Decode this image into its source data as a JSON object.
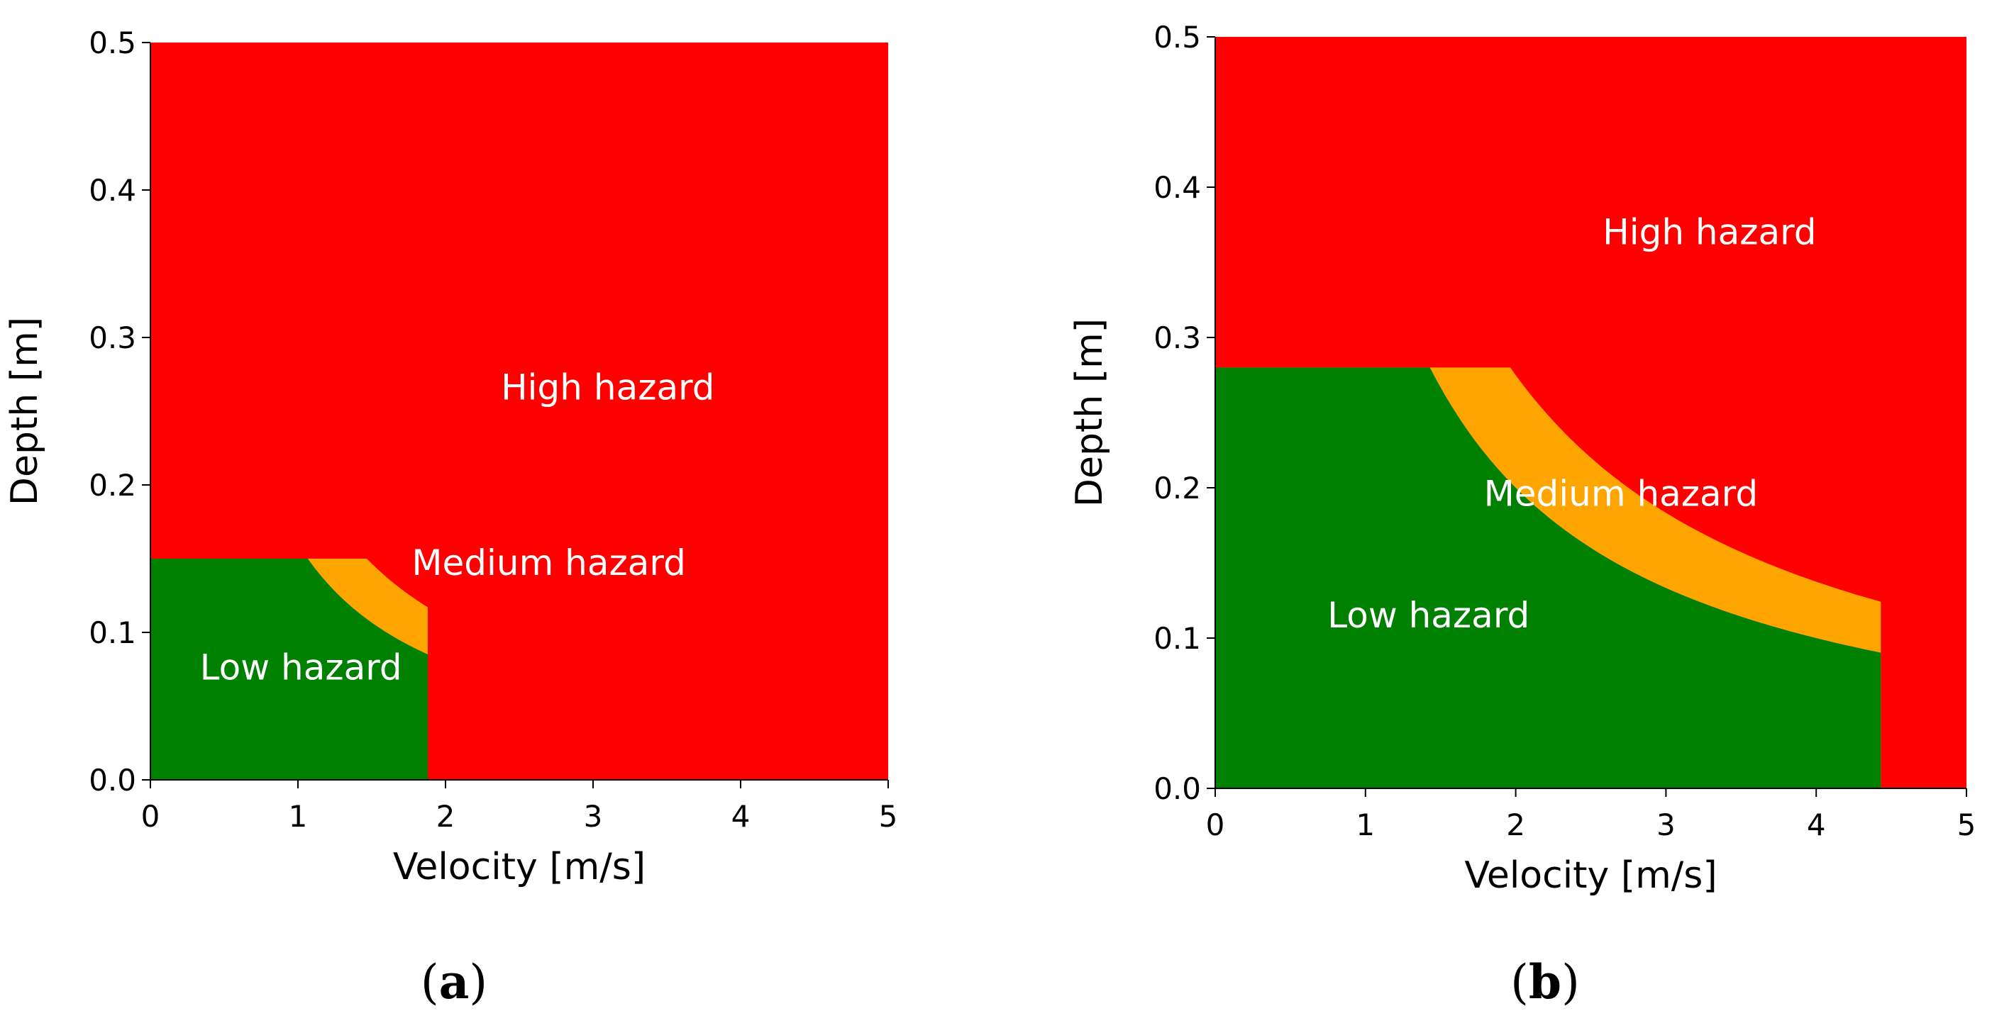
{
  "colors": {
    "high": "#ff0000",
    "medium": "#ffa500",
    "low": "#008000",
    "label": "#ffffff"
  },
  "chart_data": [
    {
      "type": "area",
      "panel": "a",
      "caption_open": "(",
      "caption_letter": "a",
      "caption_close": ")",
      "xlabel": "Velocity [m/s]",
      "ylabel": "Depth [m]",
      "xlim": [
        0,
        5
      ],
      "ylim": [
        0,
        0.5
      ],
      "xticks": [
        "0",
        "1",
        "2",
        "3",
        "4",
        "5"
      ],
      "yticks": [
        "0.0",
        "0.1",
        "0.2",
        "0.3",
        "0.4",
        "0.5"
      ],
      "thresholds": {
        "max_velocity": 1.88,
        "max_depth": 0.15,
        "low_hazard_product": 0.16,
        "medium_hazard_product": 0.22
      },
      "regions": [
        {
          "name": "High hazard",
          "label": "High hazard",
          "label_at": [
            3.1,
            0.258
          ]
        },
        {
          "name": "Medium hazard",
          "label": "Medium hazard",
          "label_at": [
            2.7,
            0.139
          ]
        },
        {
          "name": "Low hazard",
          "label": "Low hazard",
          "label_at": [
            1.02,
            0.068
          ]
        }
      ]
    },
    {
      "type": "area",
      "panel": "b",
      "caption_open": "(",
      "caption_letter": "b",
      "caption_close": ")",
      "xlabel": "Velocity [m/s]",
      "ylabel": "Depth [m]",
      "xlim": [
        0,
        5
      ],
      "ylim": [
        0,
        0.5
      ],
      "xticks": [
        "0",
        "1",
        "2",
        "3",
        "4",
        "5"
      ],
      "yticks": [
        "0.0",
        "0.1",
        "0.2",
        "0.3",
        "0.4",
        "0.5"
      ],
      "thresholds": {
        "max_velocity": 4.43,
        "max_depth": 0.28,
        "low_hazard_product": 0.4,
        "medium_hazard_product": 0.55
      },
      "regions": [
        {
          "name": "High hazard",
          "label": "High hazard",
          "label_at": [
            3.29,
            0.362
          ]
        },
        {
          "name": "Medium hazard",
          "label": "Medium hazard",
          "label_at": [
            2.7,
            0.188
          ]
        },
        {
          "name": "Low hazard",
          "label": "Low hazard",
          "label_at": [
            1.42,
            0.107
          ]
        }
      ]
    }
  ]
}
